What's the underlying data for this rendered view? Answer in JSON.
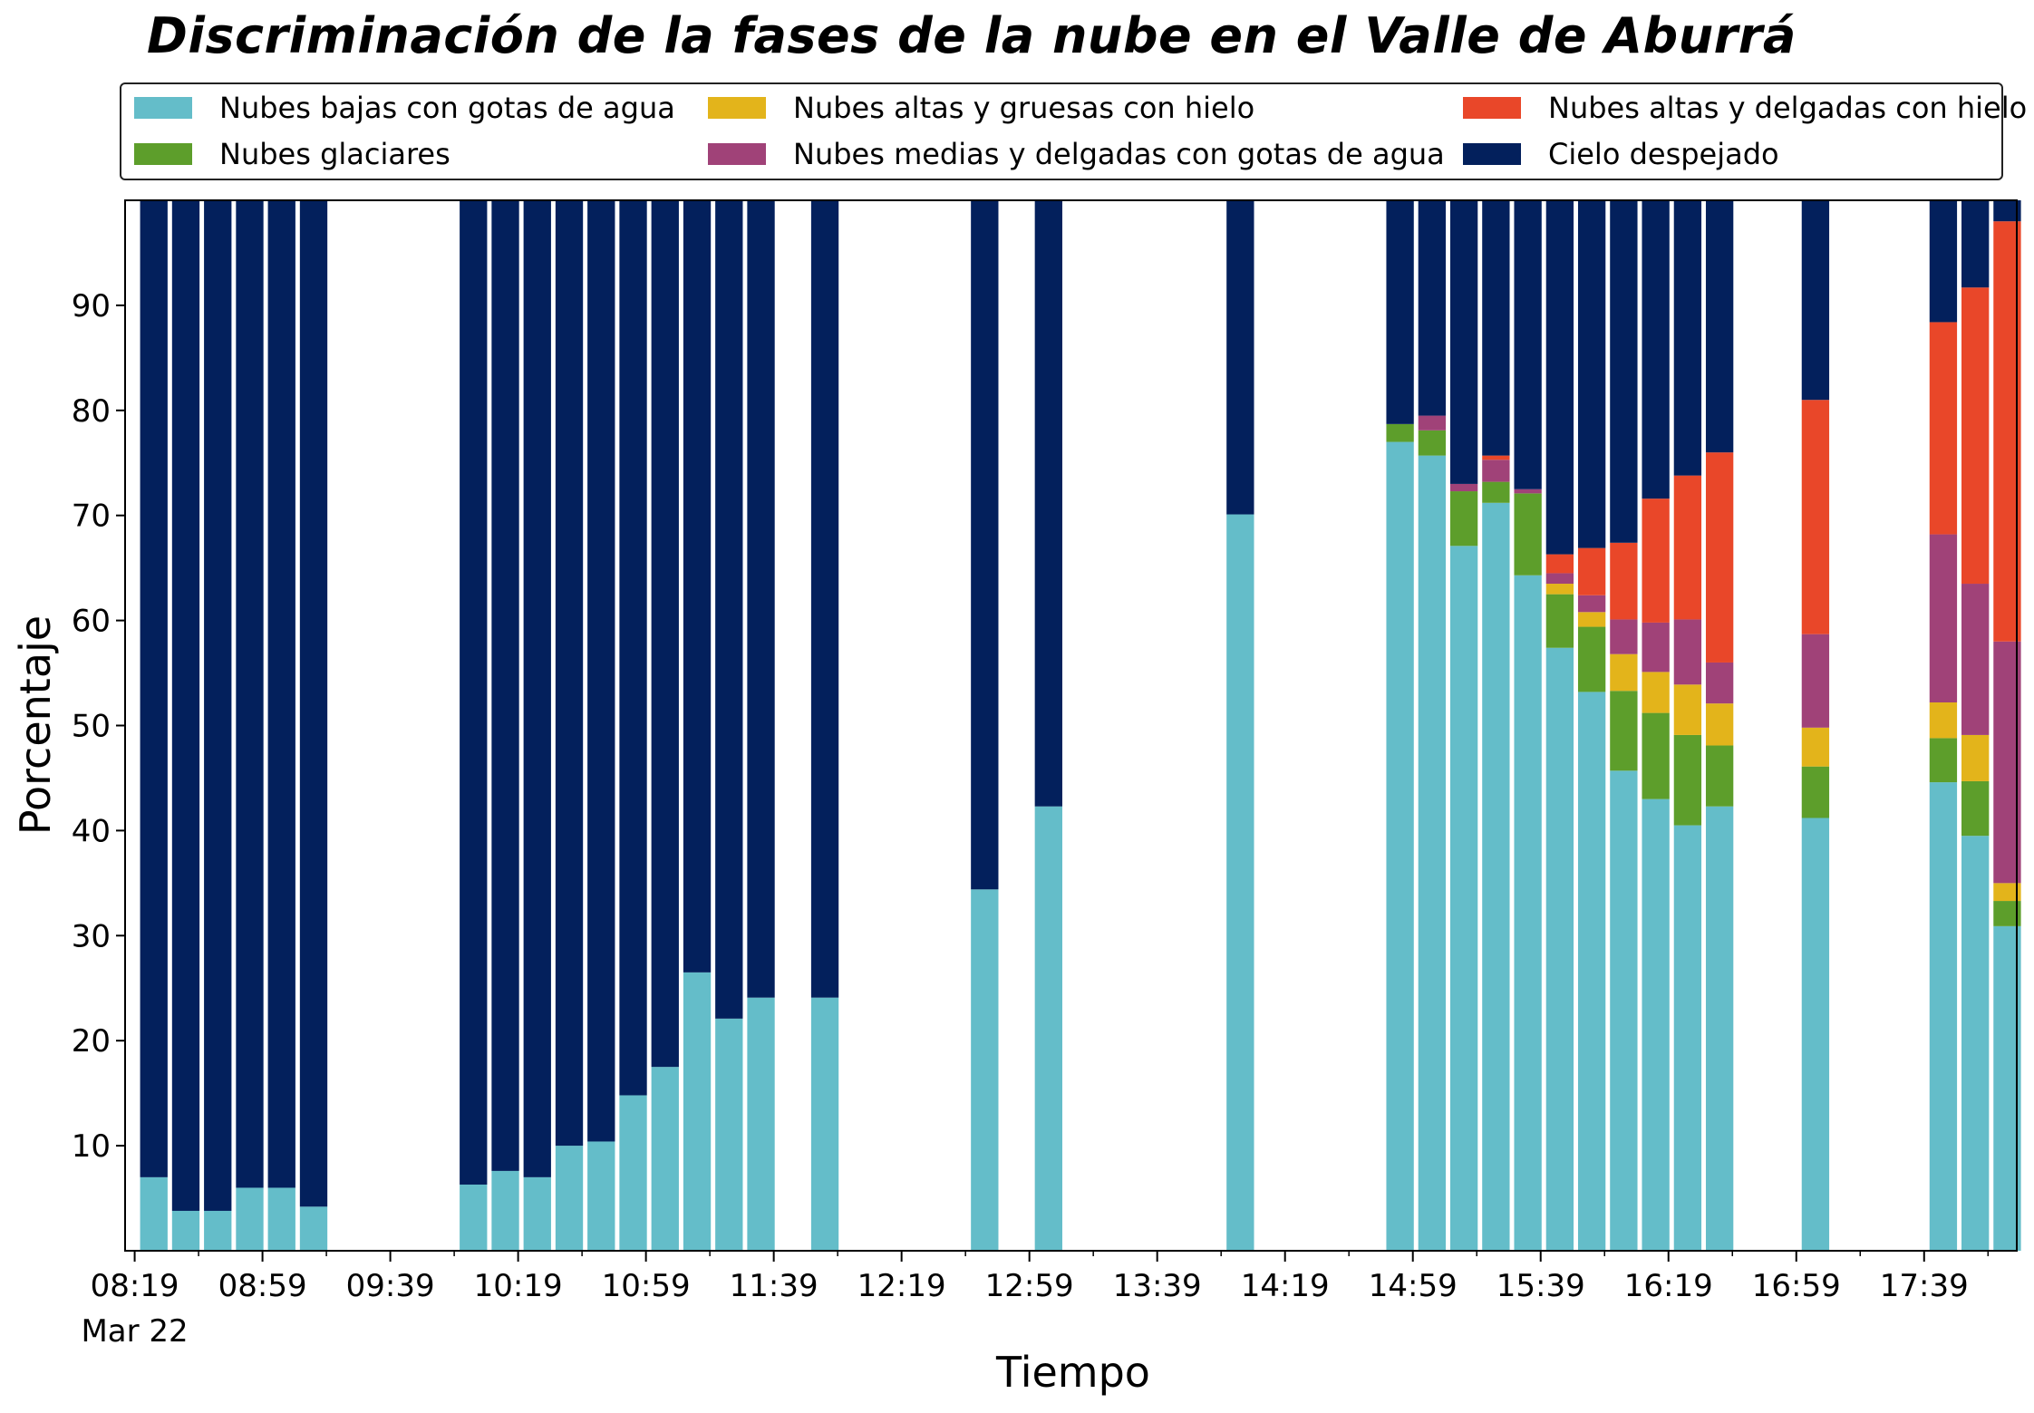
{
  "chart_data": {
    "type": "bar",
    "stacked": true,
    "title": "Discriminación de la fases de la nube en el Valle de Aburrá",
    "xlabel": "Tiempo",
    "ylabel": "Porcentaje",
    "ylim": [
      0,
      100
    ],
    "yticks": [
      10,
      20,
      30,
      40,
      50,
      60,
      70,
      80,
      90
    ],
    "xticks": [
      "08:19",
      "08:59",
      "09:39",
      "10:19",
      "10:59",
      "11:39",
      "12:19",
      "12:59",
      "13:39",
      "14:19",
      "14:59",
      "15:39",
      "16:19",
      "16:59",
      "17:39"
    ],
    "xtick_sublabel": "Mar 22",
    "xtick_time_minutes": [
      499,
      539,
      579,
      619,
      659,
      699,
      739,
      779,
      819,
      859,
      899,
      939,
      979,
      1019,
      1059
    ],
    "x_range_minutes": [
      496,
      1088
    ],
    "bar_time_minutes": [
      505,
      515,
      525,
      535,
      545,
      555,
      605,
      615,
      625,
      635,
      645,
      655,
      665,
      675,
      685,
      695,
      715,
      765,
      785,
      845,
      895,
      905,
      915,
      925,
      935,
      945,
      955,
      965,
      975,
      985,
      995,
      1025,
      1065,
      1075,
      1085
    ],
    "grid": false,
    "legend_position": "top",
    "series": [
      {
        "name": "Nubes bajas con gotas de agua",
        "color": "#64bdc9",
        "values": [
          7,
          3.8,
          3.8,
          6,
          6,
          4.2,
          6.3,
          7.6,
          7,
          10,
          10.4,
          14.8,
          17.5,
          26.5,
          22.1,
          24.1,
          24.1,
          34.4,
          42.3,
          70.1,
          77,
          75.7,
          67.1,
          71.2,
          64.3,
          57.4,
          53.2,
          45.7,
          43,
          40.5,
          42.3,
          41.2,
          44.6,
          39.5,
          30.9
        ]
      },
      {
        "name": "Nubes glaciares",
        "color": "#5d9e2b",
        "values": [
          0,
          0,
          0,
          0,
          0,
          0,
          0,
          0,
          0,
          0,
          0,
          0,
          0,
          0,
          0,
          0,
          0,
          0,
          0,
          0,
          1.7,
          2.4,
          5.2,
          2,
          7.8,
          5.1,
          6.2,
          7.6,
          8.2,
          8.6,
          5.8,
          4.9,
          4.2,
          5.2,
          2.4
        ]
      },
      {
        "name": "Nubes altas y gruesas con hielo",
        "color": "#e3b41b",
        "values": [
          0,
          0,
          0,
          0,
          0,
          0,
          0,
          0,
          0,
          0,
          0,
          0,
          0,
          0,
          0,
          0,
          0,
          0,
          0,
          0,
          0,
          0,
          0,
          0,
          0,
          1,
          1.4,
          3.5,
          3.9,
          4.8,
          4,
          3.7,
          3.4,
          4.4,
          1.7
        ]
      },
      {
        "name": "Nubes medias y delgadas con gotas de agua",
        "color": "#a04278",
        "values": [
          0,
          0,
          0,
          0,
          0,
          0,
          0,
          0,
          0,
          0,
          0,
          0,
          0,
          0,
          0,
          0,
          0,
          0,
          0,
          0,
          0,
          1.4,
          0.7,
          2.1,
          0.4,
          1,
          1.6,
          3.3,
          4.7,
          6.2,
          3.9,
          8.9,
          16,
          14.4,
          23
        ]
      },
      {
        "name": "Nubes altas y delgadas con hielo",
        "color": "#e94729",
        "values": [
          0,
          0,
          0,
          0,
          0,
          0,
          0,
          0,
          0,
          0,
          0,
          0,
          0,
          0,
          0,
          0,
          0,
          0,
          0,
          0,
          0,
          0,
          0,
          0.4,
          0,
          1.8,
          4.5,
          7.3,
          11.8,
          13.7,
          20,
          22.3,
          20.2,
          28.2,
          40
        ]
      },
      {
        "name": "Cielo despejado",
        "color": "#03205c",
        "values": [
          93,
          96.2,
          96.2,
          94,
          94,
          95.8,
          93.7,
          92.4,
          93,
          90,
          89.6,
          85.2,
          82.5,
          73.5,
          77.9,
          75.9,
          75.9,
          65.6,
          57.7,
          29.9,
          21.3,
          20.5,
          27,
          24.3,
          27.5,
          33.7,
          33.1,
          32.6,
          28.4,
          26.2,
          24,
          19,
          11.6,
          8.3,
          2
        ]
      }
    ]
  }
}
